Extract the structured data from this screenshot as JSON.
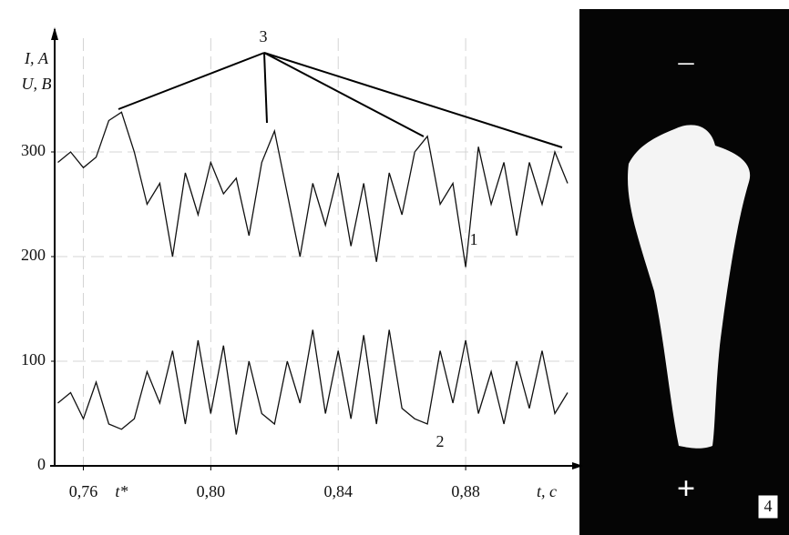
{
  "chart_data": {
    "type": "line",
    "y_labels": [
      "I, А",
      "U, В"
    ],
    "x_label": "t, с",
    "marker_label": "t*",
    "annotations": [
      "1",
      "2",
      "3"
    ],
    "photo": {
      "label": "4",
      "top_sign": "–",
      "bottom_sign": "+"
    },
    "x": [
      0.752,
      0.756,
      0.76,
      0.764,
      0.768,
      0.772,
      0.776,
      0.78,
      0.784,
      0.788,
      0.792,
      0.796,
      0.8,
      0.804,
      0.808,
      0.812,
      0.816,
      0.82,
      0.824,
      0.828,
      0.832,
      0.836,
      0.84,
      0.844,
      0.848,
      0.852,
      0.856,
      0.86,
      0.864,
      0.868,
      0.872,
      0.876,
      0.88,
      0.884,
      0.888,
      0.892,
      0.896,
      0.9,
      0.904,
      0.908,
      0.912
    ],
    "series": [
      {
        "color": "#111111",
        "values": [
          290,
          300,
          285,
          295,
          330,
          338,
          300,
          250,
          270,
          200,
          280,
          240,
          290,
          260,
          275,
          220,
          290,
          320,
          260,
          200,
          270,
          230,
          280,
          210,
          270,
          195,
          280,
          240,
          300,
          315,
          250,
          270,
          190,
          305,
          250,
          290,
          220,
          290,
          250,
          300,
          270
        ]
      },
      {
        "color": "#111111",
        "values": [
          60,
          70,
          45,
          80,
          40,
          35,
          45,
          90,
          60,
          110,
          40,
          120,
          50,
          115,
          30,
          100,
          50,
          40,
          100,
          60,
          130,
          50,
          110,
          45,
          125,
          40,
          130,
          55,
          45,
          40,
          110,
          60,
          120,
          50,
          90,
          40,
          100,
          55,
          110,
          50,
          70
        ]
      }
    ],
    "xlim": [
      0.751,
      0.914
    ],
    "xticks": [
      {
        "value": 0.76,
        "label": "0,76"
      },
      {
        "value": 0.8,
        "label": "0,80"
      },
      {
        "value": 0.84,
        "label": "0,84"
      },
      {
        "value": 0.88,
        "label": "0,88"
      }
    ],
    "marker_x": 0.772,
    "ylim": [
      0,
      400
    ],
    "yticks": [
      0,
      100,
      200,
      300
    ],
    "grid": true
  }
}
